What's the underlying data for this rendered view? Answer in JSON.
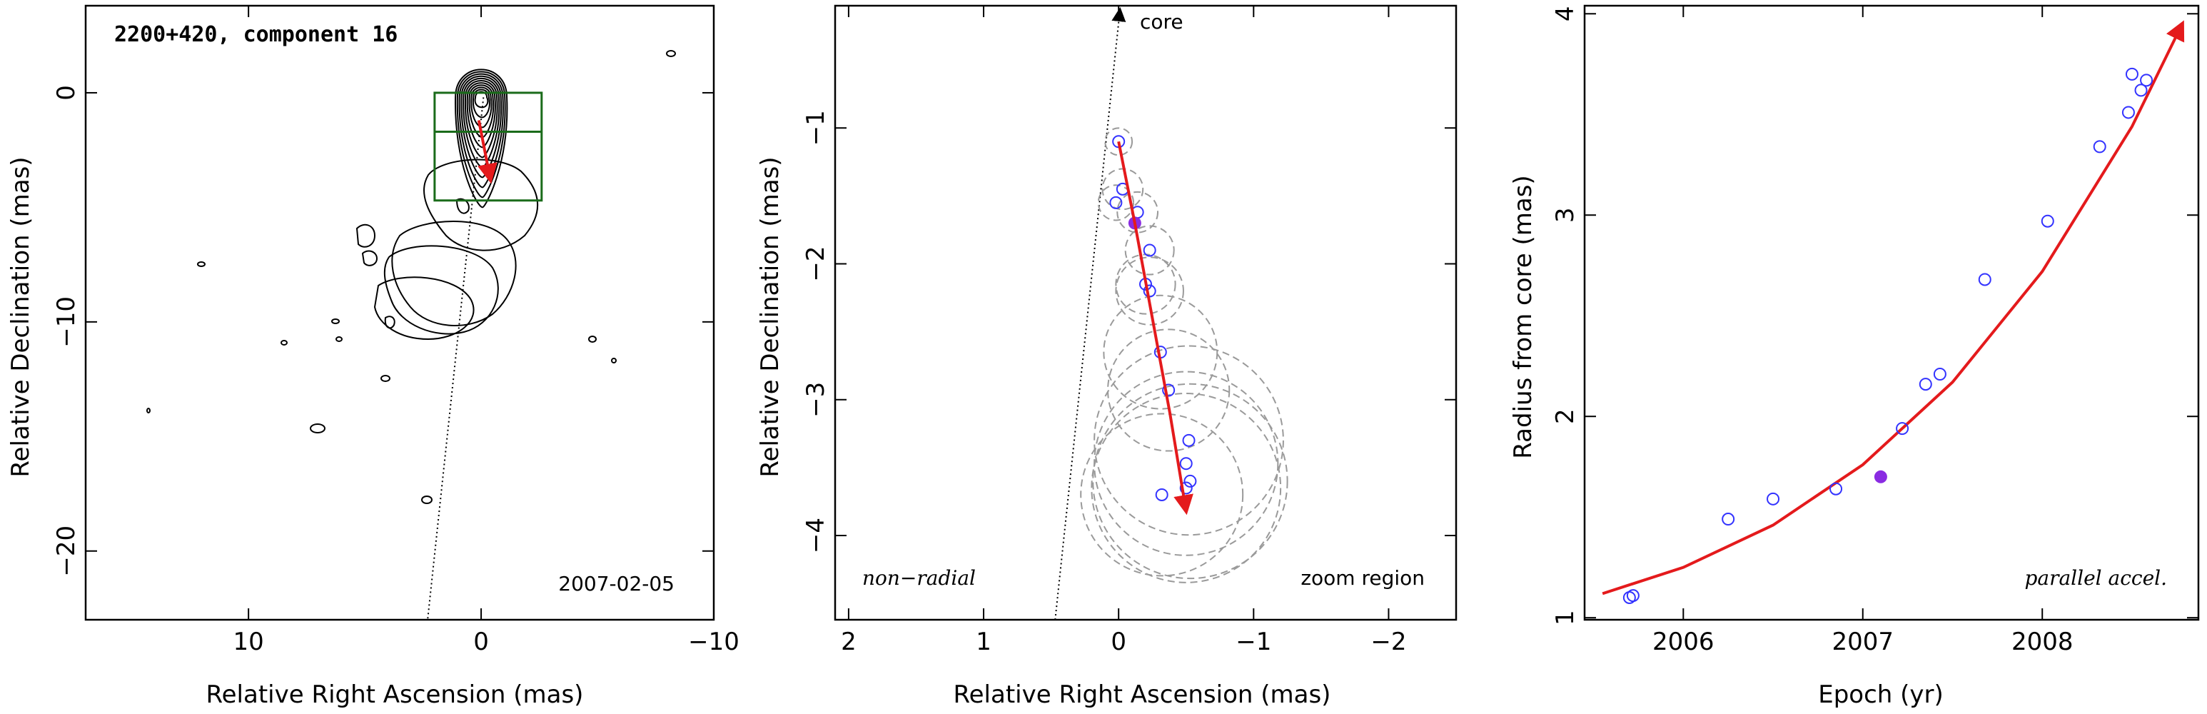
{
  "colors": {
    "fit": "#e41a1c",
    "points": "#3333ff",
    "highlight": "#8a2be2",
    "box": "#1a6b1a",
    "circles": "#9a9a9a",
    "contour": "#000000"
  },
  "chart_data": [
    {
      "type": "contour",
      "title": "2200+420, component 16",
      "epoch_label": "2007-02-05",
      "xlabel": "Relative Right Ascension (mas)",
      "ylabel": "Relative Declination (mas)",
      "xlim": [
        17,
        -10
      ],
      "ylim": [
        -23,
        3.8
      ],
      "xticks": [
        10,
        0,
        -10
      ],
      "xtick_labels": [
        "10",
        "0",
        "−10"
      ],
      "yticks": [
        0,
        -10,
        -20
      ],
      "ytick_labels": [
        "0",
        "−10",
        "−20"
      ],
      "zoom_box": {
        "x": [
          2,
          -2.6
        ],
        "y": [
          0,
          -4.7
        ],
        "inner_y": -1.7
      },
      "core_line": {
        "x": [
          -0.1,
          2.3
        ],
        "y": [
          -0.2,
          -23
        ]
      },
      "track": {
        "x": [
          0.1,
          -0.4
        ],
        "y": [
          -1.2,
          -3.8
        ]
      },
      "contour_levels": 11
    },
    {
      "type": "scatter",
      "xlabel": "Relative Right Ascension (mas)",
      "ylabel": "Relative Declination (mas)",
      "xlim": [
        2.1,
        -2.5
      ],
      "ylim": [
        -4.62,
        -0.1
      ],
      "xticks": [
        2,
        1,
        0,
        -1,
        -2
      ],
      "xtick_labels": [
        "2",
        "1",
        "0",
        "−1",
        "−2"
      ],
      "yticks": [
        -1,
        -2,
        -3,
        -4
      ],
      "ytick_labels": [
        "−1",
        "−2",
        "−3",
        "−4"
      ],
      "annotations": {
        "core": "core",
        "left": "non−radial",
        "right": "zoom region"
      },
      "core_line": {
        "x": [
          0.47,
          -0.01
        ],
        "y": [
          -4.62,
          -0.1
        ]
      },
      "points": [
        {
          "x": 0.0,
          "y": -1.1,
          "r": 0.1
        },
        {
          "x": -0.03,
          "y": -1.45,
          "r": 0.15
        },
        {
          "x": 0.02,
          "y": -1.55,
          "r": 0.13
        },
        {
          "x": -0.14,
          "y": -1.62,
          "r": 0.15
        },
        {
          "x": -0.23,
          "y": -1.9,
          "r": 0.18
        },
        {
          "x": -0.2,
          "y": -2.15,
          "r": 0.22
        },
        {
          "x": -0.23,
          "y": -2.2,
          "r": 0.25
        },
        {
          "x": -0.31,
          "y": -2.65,
          "r": 0.42
        },
        {
          "x": -0.37,
          "y": -2.93,
          "r": 0.45
        },
        {
          "x": -0.52,
          "y": -3.3,
          "r": 0.7
        },
        {
          "x": -0.5,
          "y": -3.47,
          "r": 0.68
        },
        {
          "x": -0.53,
          "y": -3.6,
          "r": 0.72
        },
        {
          "x": -0.5,
          "y": -3.65,
          "r": 0.7
        },
        {
          "x": -0.32,
          "y": -3.7,
          "r": 0.6
        }
      ],
      "highlight_point": {
        "x": -0.12,
        "y": -1.7
      },
      "fit_curve": {
        "x": [
          0.0,
          -0.12,
          -0.25,
          -0.38,
          -0.5
        ],
        "y": [
          -1.1,
          -1.7,
          -2.4,
          -3.1,
          -3.82
        ]
      }
    },
    {
      "type": "scatter",
      "xlabel": "Epoch (yr)",
      "ylabel": "Radius from core (mas)",
      "xlim": [
        2005.45,
        2008.87
      ],
      "ylim": [
        0.99,
        4.04
      ],
      "xticks": [
        2006,
        2007,
        2008
      ],
      "xtick_labels": [
        "2006",
        "2007",
        "2008"
      ],
      "yticks": [
        1,
        2,
        3,
        4
      ],
      "ytick_labels": [
        "1",
        "2",
        "3",
        "4"
      ],
      "annotation": "parallel accel.",
      "points": [
        {
          "x": 2005.7,
          "y": 1.1
        },
        {
          "x": 2005.72,
          "y": 1.11
        },
        {
          "x": 2006.25,
          "y": 1.49
        },
        {
          "x": 2006.5,
          "y": 1.59
        },
        {
          "x": 2006.85,
          "y": 1.64
        },
        {
          "x": 2007.22,
          "y": 1.94
        },
        {
          "x": 2007.35,
          "y": 2.16
        },
        {
          "x": 2007.43,
          "y": 2.21
        },
        {
          "x": 2007.68,
          "y": 2.68
        },
        {
          "x": 2008.03,
          "y": 2.97
        },
        {
          "x": 2008.32,
          "y": 3.34
        },
        {
          "x": 2008.48,
          "y": 3.51
        },
        {
          "x": 2008.5,
          "y": 3.7
        },
        {
          "x": 2008.55,
          "y": 3.62
        },
        {
          "x": 2008.58,
          "y": 3.67
        }
      ],
      "highlight_point": {
        "x": 2007.1,
        "y": 1.7
      },
      "fit_curve": {
        "x": [
          2005.55,
          2006.0,
          2006.5,
          2007.0,
          2007.5,
          2008.0,
          2008.5,
          2008.78
        ],
        "y": [
          1.12,
          1.25,
          1.46,
          1.76,
          2.17,
          2.72,
          3.44,
          3.95
        ]
      }
    }
  ]
}
